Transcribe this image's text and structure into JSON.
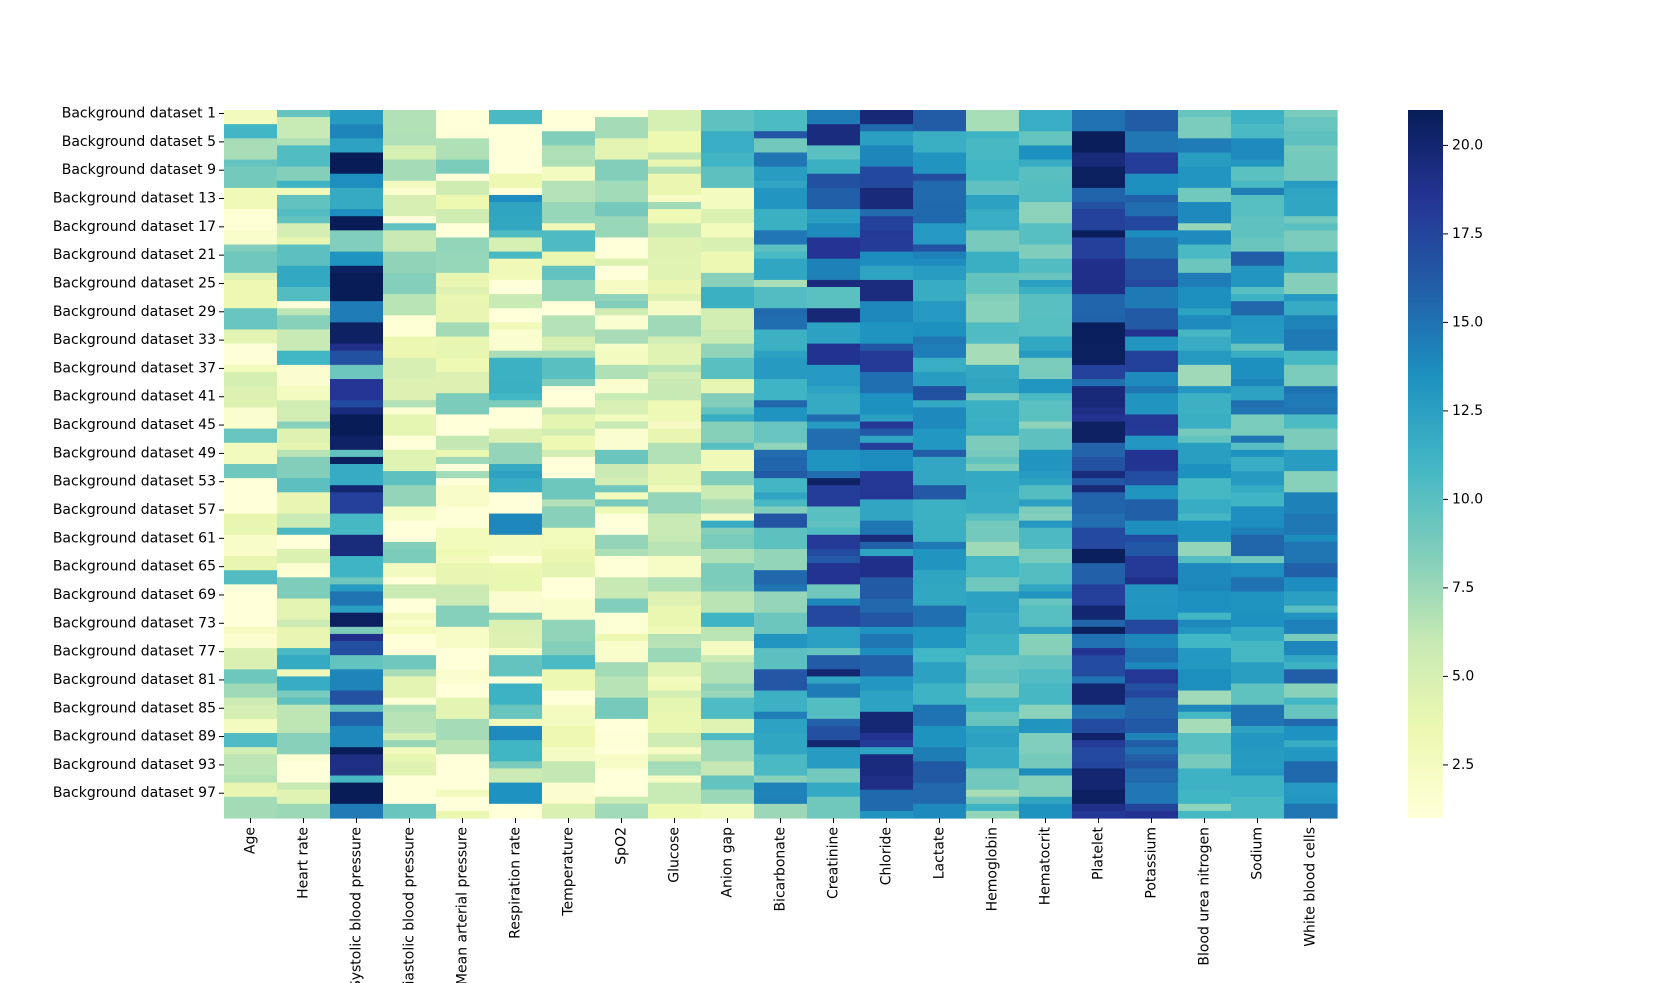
{
  "chart_data": {
    "type": "heatmap",
    "title": "",
    "xlabel": "",
    "ylabel": "",
    "colormap": "YlGnBu",
    "color_range": [
      1,
      21
    ],
    "colorbar_ticks": [
      "2.5",
      "5.0",
      "7.5",
      "10.0",
      "12.5",
      "15.0",
      "17.5",
      "20.0"
    ],
    "colorbar_tick_values": [
      2.5,
      5.0,
      7.5,
      10.0,
      12.5,
      15.0,
      17.5,
      20.0
    ],
    "columns": [
      "Age",
      "Heart rate",
      "Systolic blood pressure",
      "Diastolic blood pressure",
      "Mean arterial pressure",
      "Respiration rate",
      "Temperature",
      "SpO2",
      "Glucose",
      "Anion gap",
      "Bicarbonate",
      "Creatinine",
      "Chloride",
      "Lactate",
      "Hemoglobin",
      "Hematocrit",
      "Platelet",
      "Potassium",
      "Blood urea nitrogen",
      "Sodium",
      "White blood cells"
    ],
    "row_count": 100,
    "row_label_prefix": "Background dataset ",
    "row_labels_shown": [
      "Background dataset 1",
      "Background dataset 5",
      "Background dataset 9",
      "Background dataset 13",
      "Background dataset 17",
      "Background dataset 21",
      "Background dataset 25",
      "Background dataset 29",
      "Background dataset 33",
      "Background dataset 37",
      "Background dataset 41",
      "Background dataset 45",
      "Background dataset 49",
      "Background dataset 53",
      "Background dataset 57",
      "Background dataset 61",
      "Background dataset 65",
      "Background dataset 69",
      "Background dataset 73",
      "Background dataset 77",
      "Background dataset 81",
      "Background dataset 85",
      "Background dataset 89",
      "Background dataset 93",
      "Background dataset 97"
    ],
    "column_typical_values": [
      5,
      6,
      15,
      5,
      4,
      6,
      5,
      5,
      5,
      7,
      12,
      15,
      16,
      14,
      10,
      11,
      18,
      16,
      11,
      12,
      12
    ],
    "column_spread": [
      6,
      6,
      7,
      5,
      5,
      8,
      6,
      5,
      3,
      5,
      5,
      6,
      4,
      3,
      3,
      3,
      3,
      3,
      4,
      4,
      4
    ]
  }
}
